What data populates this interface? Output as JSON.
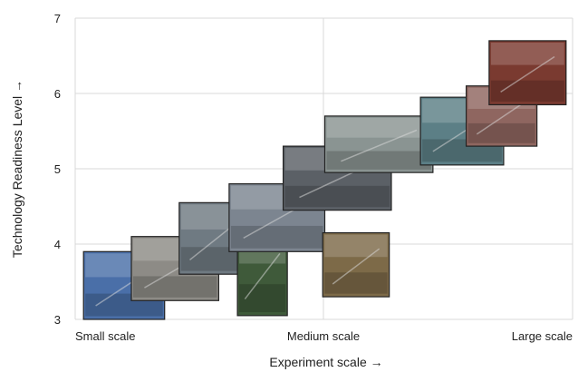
{
  "chart_data": {
    "type": "scatter",
    "title": "",
    "xlabel": "Experiment scale →",
    "ylabel": "Technology Readiness Level →",
    "x_categories": [
      "Small scale",
      "Medium scale",
      "Large scale"
    ],
    "xlim": [
      0,
      2
    ],
    "ylim": [
      3,
      7
    ],
    "yticks": [
      3,
      4,
      5,
      6,
      7
    ],
    "grid": true,
    "legend": "none",
    "points": [
      {
        "name": "photo-1",
        "x_range": [
          0.04,
          0.43
        ],
        "y_range": [
          3.0,
          3.9
        ],
        "color": "#4a6fa8"
      },
      {
        "name": "photo-2",
        "x_range": [
          0.27,
          0.69
        ],
        "y_range": [
          3.25,
          4.1
        ],
        "color": "#8d8b86"
      },
      {
        "name": "photo-3",
        "x_range": [
          0.5,
          0.84
        ],
        "y_range": [
          3.6,
          4.55
        ],
        "color": "#6f7a82"
      },
      {
        "name": "photo-4",
        "x_range": [
          0.78,
          1.02
        ],
        "y_range": [
          3.05,
          4.15
        ],
        "color": "#3f5a3a"
      },
      {
        "name": "photo-5",
        "x_range": [
          0.74,
          1.2
        ],
        "y_range": [
          3.9,
          4.8
        ],
        "color": "#7c8590"
      },
      {
        "name": "photo-6",
        "x_range": [
          1.19,
          1.51
        ],
        "y_range": [
          3.3,
          4.15
        ],
        "color": "#7d6a48"
      },
      {
        "name": "photo-7",
        "x_range": [
          1.0,
          1.52
        ],
        "y_range": [
          4.45,
          5.3
        ],
        "color": "#5b6066"
      },
      {
        "name": "photo-8",
        "x_range": [
          1.2,
          1.72
        ],
        "y_range": [
          4.95,
          5.7
        ],
        "color": "#8a9492"
      },
      {
        "name": "photo-9",
        "x_range": [
          1.66,
          2.06
        ],
        "y_range": [
          5.05,
          5.95
        ],
        "color": "#5c7f86"
      },
      {
        "name": "photo-10",
        "x_range": [
          1.88,
          2.22
        ],
        "y_range": [
          5.3,
          6.1
        ],
        "color": "#8f6660"
      },
      {
        "name": "photo-11",
        "x_range": [
          1.99,
          2.36
        ],
        "y_range": [
          5.85,
          6.7
        ],
        "color": "#7a3a30"
      }
    ]
  }
}
